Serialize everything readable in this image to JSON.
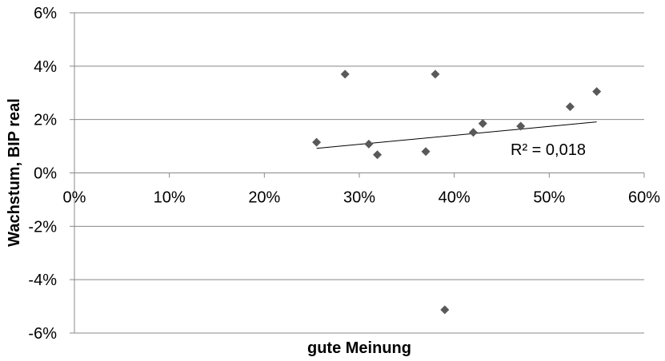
{
  "chart_data": {
    "type": "scatter",
    "title": "",
    "xlabel": "gute Meinung",
    "ylabel": "Wachstum, BIP real",
    "xlim": [
      0,
      0.6
    ],
    "ylim": [
      -0.06,
      0.06
    ],
    "x_ticks": [
      "0%",
      "10%",
      "20%",
      "30%",
      "40%",
      "50%",
      "60%"
    ],
    "x_tick_values": [
      0,
      0.1,
      0.2,
      0.3,
      0.4,
      0.5,
      0.6
    ],
    "y_ticks": [
      "6%",
      "4%",
      "2%",
      "0%",
      "-2%",
      "-4%",
      "-6%"
    ],
    "y_tick_values": [
      0.06,
      0.04,
      0.02,
      0,
      -0.02,
      -0.04,
      -0.06
    ],
    "grid": "horizontal",
    "legend": "none",
    "points": [
      {
        "x": 0.255,
        "y": 0.0115
      },
      {
        "x": 0.285,
        "y": 0.037
      },
      {
        "x": 0.31,
        "y": 0.0108
      },
      {
        "x": 0.319,
        "y": 0.0068
      },
      {
        "x": 0.37,
        "y": 0.008
      },
      {
        "x": 0.38,
        "y": 0.037
      },
      {
        "x": 0.39,
        "y": -0.0513
      },
      {
        "x": 0.42,
        "y": 0.0152
      },
      {
        "x": 0.43,
        "y": 0.0185
      },
      {
        "x": 0.47,
        "y": 0.0175
      },
      {
        "x": 0.522,
        "y": 0.0248
      },
      {
        "x": 0.55,
        "y": 0.0305
      }
    ],
    "trendline": {
      "type": "linear",
      "x_start": 0.255,
      "y_start": 0.0092,
      "x_end": 0.55,
      "y_end": 0.0191,
      "r_squared_label": "R² = 0,018"
    },
    "colors": {
      "marker": "#595959",
      "trendline": "#000000",
      "gridline": "#888888",
      "axis": "#888888"
    }
  }
}
